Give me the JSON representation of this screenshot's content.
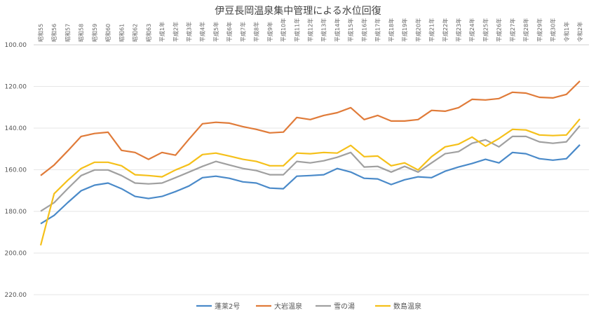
{
  "chart_data": {
    "type": "line",
    "title": "伊豆長岡温泉集中管理による水位回復",
    "xlabel": "",
    "ylabel": "",
    "ylim": [
      220,
      100
    ],
    "y_inverted": true,
    "yticks": [
      "100.00",
      "120.00",
      "140.00",
      "160.00",
      "180.00",
      "200.00",
      "220.00"
    ],
    "ytick_values": [
      100,
      120,
      140,
      160,
      180,
      200,
      220
    ],
    "grid": true,
    "legend_position": "bottom",
    "categories": [
      "昭和55",
      "昭和56",
      "昭和57",
      "昭和58",
      "昭和59",
      "昭和60",
      "昭和61",
      "昭和62",
      "昭和63",
      "平成1年",
      "平成2年",
      "平成3年",
      "平成4年",
      "平成5年",
      "平成6年",
      "平成7年",
      "平成8年",
      "平成9年",
      "平成10年",
      "平成11年",
      "平成12年",
      "平成13年",
      "平成14年",
      "平成15年",
      "平成16年",
      "平成17年",
      "平成18年",
      "平成19年",
      "平成20年",
      "平成21年",
      "平成22年",
      "平成23年",
      "平成24年",
      "平成25年",
      "平成26年",
      "平成27年",
      "平成28年",
      "平成29年",
      "平成30年",
      "令和1年",
      "令和2年"
    ],
    "series": [
      {
        "name": "蓬莱2号",
        "color": "#4a8ac9",
        "values": [
          185.9,
          181.9,
          175.8,
          170.1,
          167.4,
          166.4,
          169.1,
          172.8,
          173.8,
          172.8,
          170.5,
          167.8,
          163.8,
          163.1,
          164.1,
          165.8,
          166.4,
          168.8,
          169.1,
          163.1,
          162.8,
          162.4,
          159.4,
          161.1,
          164.1,
          164.4,
          167.1,
          164.8,
          163.4,
          163.8,
          160.7,
          158.7,
          157.0,
          155.0,
          156.7,
          151.7,
          152.3,
          154.7,
          155.4,
          154.7,
          148.0
        ]
      },
      {
        "name": "大岩温泉",
        "color": "#e07b39",
        "values": [
          162.8,
          157.7,
          151.0,
          144.0,
          142.6,
          142.0,
          150.7,
          151.7,
          155.0,
          151.7,
          153.0,
          145.3,
          137.9,
          137.2,
          137.6,
          139.3,
          140.6,
          142.3,
          141.9,
          134.9,
          135.9,
          133.9,
          132.6,
          130.2,
          135.9,
          133.9,
          136.6,
          136.6,
          135.9,
          131.5,
          131.9,
          130.2,
          126.2,
          126.5,
          125.8,
          122.8,
          123.2,
          125.2,
          125.5,
          123.8,
          117.4
        ]
      },
      {
        "name": "雪の湯",
        "color": "#a0a0a0",
        "values": [
          179.9,
          175.8,
          169.1,
          162.8,
          160.1,
          160.1,
          162.8,
          166.4,
          166.8,
          166.4,
          163.8,
          161.1,
          158.4,
          156.0,
          157.7,
          159.4,
          160.4,
          162.4,
          162.4,
          156.0,
          156.7,
          155.7,
          154.0,
          151.7,
          158.7,
          158.4,
          161.1,
          158.4,
          161.1,
          156.7,
          152.3,
          151.3,
          147.3,
          145.6,
          149.0,
          144.0,
          144.0,
          146.6,
          147.3,
          146.6,
          138.9
        ]
      },
      {
        "name": "数島温泉",
        "color": "#f5c01a",
        "values": [
          196.3,
          171.5,
          165.1,
          159.4,
          156.4,
          156.4,
          158.1,
          162.4,
          162.8,
          163.4,
          160.1,
          157.4,
          152.7,
          152.0,
          153.4,
          155.0,
          156.0,
          158.1,
          158.1,
          152.0,
          152.3,
          151.7,
          152.0,
          148.3,
          153.7,
          153.4,
          158.1,
          156.7,
          160.1,
          153.7,
          149.0,
          147.7,
          144.3,
          148.7,
          145.0,
          140.6,
          140.9,
          143.3,
          143.6,
          143.3,
          135.6
        ]
      }
    ]
  }
}
